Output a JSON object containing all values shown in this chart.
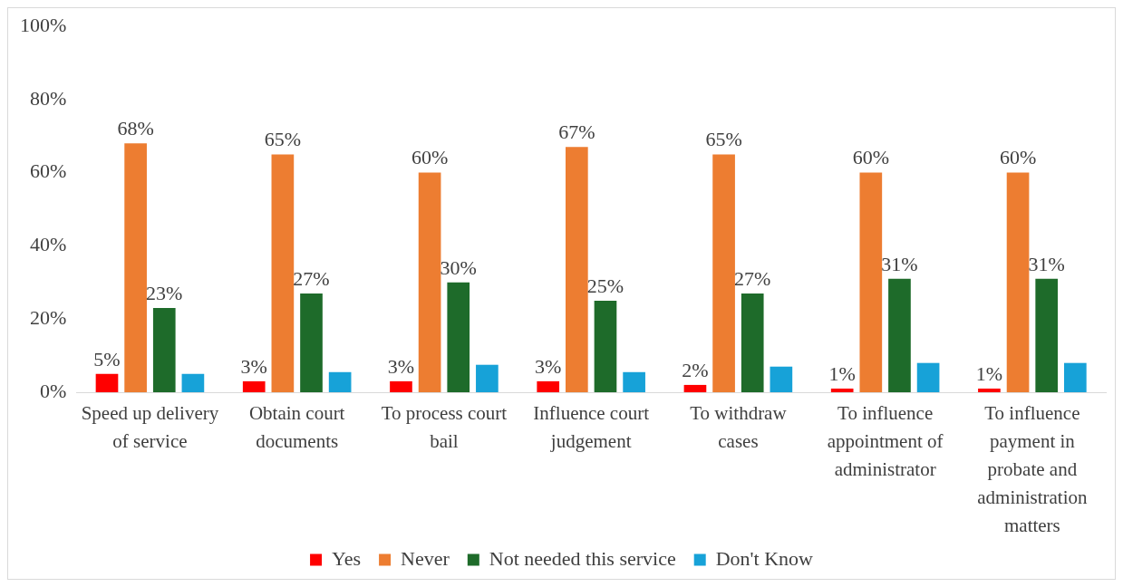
{
  "chart_data": {
    "type": "bar",
    "categories": [
      "Speed up delivery of service",
      "Obtain court documents",
      "To process court bail",
      "Influence court judgement",
      "To withdraw cases",
      "To influence appointment of administrator",
      "To influence payment in probate and administration matters"
    ],
    "series": [
      {
        "name": "Yes",
        "color": "#ff0000",
        "values": [
          5,
          3,
          3,
          3,
          2,
          1,
          1
        ],
        "value_labels": [
          "5%",
          "3%",
          "3%",
          "3%",
          "2%",
          "1%",
          "1%"
        ]
      },
      {
        "name": "Never",
        "color": "#ed7d31",
        "values": [
          68,
          65,
          60,
          67,
          65,
          60,
          60
        ],
        "value_labels": [
          "68%",
          "65%",
          "60%",
          "67%",
          "65%",
          "60%",
          "60%"
        ]
      },
      {
        "name": "Not needed this service",
        "color": "#1e6b2a",
        "values": [
          23,
          27,
          30,
          25,
          27,
          31,
          31
        ],
        "value_labels": [
          "23%",
          "27%",
          "30%",
          "25%",
          "27%",
          "31%",
          "31%"
        ]
      },
      {
        "name": "Don't Know",
        "color": "#17a2d8",
        "values": [
          5,
          5.5,
          7.5,
          5.5,
          7,
          8,
          8
        ]
      }
    ],
    "ylim": [
      0,
      100
    ],
    "yticks": [
      {
        "value": 0,
        "label": "0%"
      },
      {
        "value": 20,
        "label": "20%"
      },
      {
        "value": 40,
        "label": "40%"
      },
      {
        "value": 60,
        "label": "60%"
      },
      {
        "value": 80,
        "label": "80%"
      },
      {
        "value": 100,
        "label": "100%"
      }
    ],
    "grid": false,
    "legend": "bottom"
  }
}
